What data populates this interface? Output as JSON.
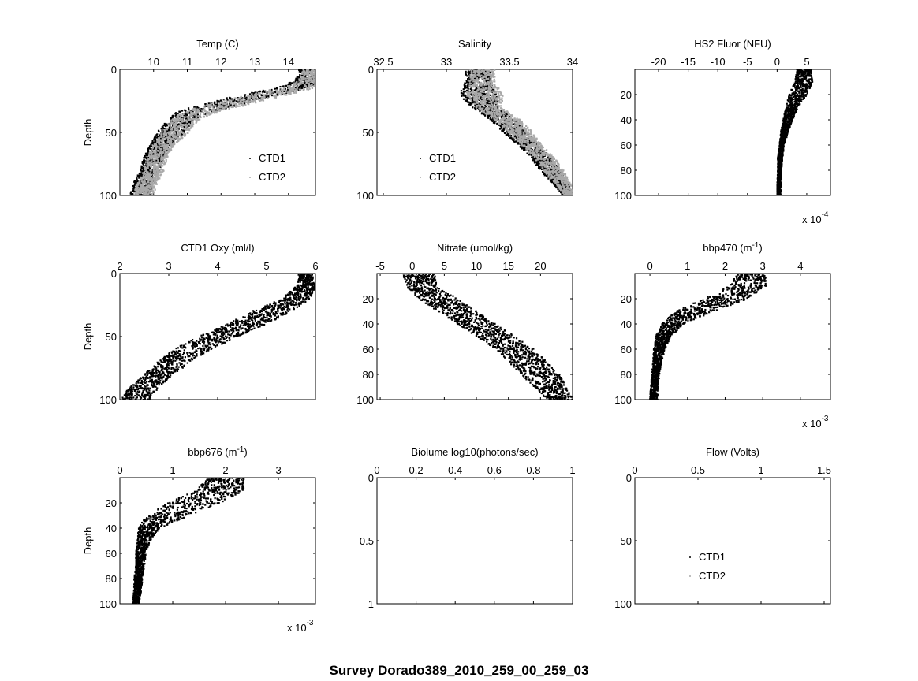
{
  "figure": {
    "suptitle": "Survey Dorado389_2010_259_00_259_03",
    "colors": {
      "ctd1": "#000000",
      "ctd2": "#a9a9a9",
      "axes": "#000000"
    }
  },
  "chart_data": [
    {
      "id": "temp",
      "type": "scatter",
      "title": "Temp (C)",
      "ylabel": "Depth",
      "xlim": [
        9.0,
        14.8
      ],
      "ylim": [
        0,
        100
      ],
      "xticks": [
        "10",
        "11",
        "12",
        "13",
        "14"
      ],
      "xtick_values": [
        10,
        11,
        12,
        13,
        14
      ],
      "yticks": [
        "0",
        "50",
        "100"
      ],
      "ytick_values": [
        0,
        50,
        100
      ],
      "legend": {
        "location": "lower-right",
        "entries": [
          "CTD1",
          "CTD2"
        ]
      },
      "series": [
        {
          "name": "CTD1",
          "color": "#000000",
          "depth": [
            0,
            5,
            10,
            15,
            20,
            25,
            30,
            35,
            40,
            50,
            60,
            70,
            80,
            90,
            100
          ],
          "center": [
            14.6,
            14.6,
            14.5,
            14.1,
            13.2,
            12.4,
            11.7,
            11.1,
            10.8,
            10.5,
            10.2,
            10.0,
            9.9,
            9.7,
            9.6
          ],
          "spread": [
            0.3,
            0.3,
            0.4,
            0.5,
            0.6,
            0.6,
            0.6,
            0.5,
            0.4,
            0.4,
            0.3,
            0.3,
            0.3,
            0.3,
            0.3
          ]
        },
        {
          "name": "CTD2",
          "color": "#a9a9a9",
          "depth": [
            0,
            5,
            10,
            15,
            20,
            25,
            30,
            35,
            40,
            50,
            60,
            70,
            80,
            90,
            100
          ],
          "center": [
            14.6,
            14.6,
            14.5,
            14.1,
            13.2,
            12.4,
            11.7,
            11.1,
            10.8,
            10.5,
            10.2,
            10.0,
            9.9,
            9.7,
            9.6
          ],
          "spread": [
            0.3,
            0.3,
            0.4,
            0.5,
            0.6,
            0.6,
            0.6,
            0.5,
            0.4,
            0.4,
            0.3,
            0.3,
            0.3,
            0.3,
            0.3
          ]
        }
      ]
    },
    {
      "id": "salinity",
      "type": "scatter",
      "title": "Salinity",
      "ylabel": "",
      "xlim": [
        32.45,
        34.0
      ],
      "ylim": [
        0,
        100
      ],
      "xticks": [
        "32.5",
        "33",
        "33.5",
        "34"
      ],
      "xtick_values": [
        32.5,
        33,
        33.5,
        34
      ],
      "yticks": [
        "0",
        "50",
        "100"
      ],
      "ytick_values": [
        0,
        50,
        100
      ],
      "legend": {
        "location": "lower-left",
        "entries": [
          "CTD1",
          "CTD2"
        ]
      },
      "series": [
        {
          "name": "CTD1",
          "color": "#000000",
          "depth": [
            0,
            10,
            20,
            30,
            40,
            50,
            60,
            70,
            80,
            90,
            100
          ],
          "center": [
            33.25,
            33.25,
            33.25,
            33.3,
            33.45,
            33.55,
            33.65,
            33.75,
            33.82,
            33.9,
            33.97
          ],
          "spread": [
            0.1,
            0.1,
            0.15,
            0.1,
            0.1,
            0.1,
            0.08,
            0.08,
            0.08,
            0.06,
            0.05
          ]
        },
        {
          "name": "CTD2",
          "color": "#a9a9a9",
          "depth": [
            0,
            10,
            20,
            30,
            40,
            50,
            60,
            70,
            80,
            90,
            100
          ],
          "center": [
            33.25,
            33.25,
            33.25,
            33.3,
            33.45,
            33.55,
            33.65,
            33.75,
            33.82,
            33.9,
            33.97
          ],
          "spread": [
            0.1,
            0.1,
            0.15,
            0.1,
            0.1,
            0.1,
            0.08,
            0.08,
            0.08,
            0.06,
            0.05
          ]
        }
      ]
    },
    {
      "id": "fluor",
      "type": "scatter",
      "title": "HS2 Fluor (NFU)",
      "ylabel": "",
      "xlim": [
        -24,
        9
      ],
      "ylim": [
        0,
        100
      ],
      "exponent": "x 10^-4",
      "xticks": [
        "-20",
        "-15",
        "-10",
        "-5",
        "0",
        "5"
      ],
      "xtick_values": [
        -20,
        -15,
        -10,
        -5,
        0,
        5
      ],
      "yticks": [
        "20",
        "40",
        "60",
        "80",
        "100"
      ],
      "ytick_values": [
        20,
        40,
        60,
        80,
        100
      ],
      "series": [
        {
          "name": "",
          "color": "#000000",
          "depth": [
            0,
            10,
            20,
            30,
            40,
            50,
            60,
            70,
            80,
            90,
            100
          ],
          "center": [
            4.5,
            4.5,
            3.5,
            2.5,
            1.8,
            1.2,
            0.8,
            0.5,
            0.4,
            0.3,
            0.3
          ],
          "spread": [
            1.2,
            1.5,
            1.5,
            1.0,
            0.8,
            0.6,
            0.4,
            0.4,
            0.3,
            0.3,
            0.3
          ]
        }
      ]
    },
    {
      "id": "oxy",
      "type": "scatter",
      "title": "CTD1 Oxy (ml/l)",
      "ylabel": "Depth",
      "xlim": [
        2,
        6
      ],
      "ylim": [
        0,
        100
      ],
      "xticks": [
        "2",
        "3",
        "4",
        "5",
        "6"
      ],
      "xtick_values": [
        2,
        3,
        4,
        5,
        6
      ],
      "yticks": [
        "0",
        "50",
        "100"
      ],
      "ytick_values": [
        0,
        50,
        100
      ],
      "series": [
        {
          "name": "",
          "color": "#000000",
          "depth": [
            0,
            5,
            10,
            20,
            30,
            40,
            50,
            60,
            70,
            80,
            90,
            100
          ],
          "center": [
            5.8,
            5.8,
            5.8,
            5.6,
            5.1,
            4.6,
            4.0,
            3.5,
            3.1,
            2.8,
            2.5,
            2.3
          ],
          "spread": [
            0.15,
            0.15,
            0.2,
            0.3,
            0.4,
            0.4,
            0.4,
            0.4,
            0.35,
            0.3,
            0.3,
            0.3
          ]
        }
      ]
    },
    {
      "id": "nitrate",
      "type": "scatter",
      "title": "Nitrate (umol/kg)",
      "ylabel": "",
      "xlim": [
        -5.5,
        25
      ],
      "ylim": [
        0,
        100
      ],
      "xticks": [
        "-5",
        "0",
        "5",
        "10",
        "15",
        "20"
      ],
      "xtick_values": [
        -5,
        0,
        5,
        10,
        15,
        20
      ],
      "yticks": [
        "20",
        "40",
        "60",
        "80",
        "100"
      ],
      "ytick_values": [
        20,
        40,
        60,
        80,
        100
      ],
      "series": [
        {
          "name": "",
          "color": "#000000",
          "depth": [
            0,
            10,
            20,
            30,
            40,
            50,
            60,
            70,
            80,
            90,
            100
          ],
          "center": [
            1,
            1.5,
            4,
            7,
            10,
            13,
            16,
            18,
            20,
            21.5,
            23
          ],
          "spread": [
            2.5,
            2.5,
            3,
            3,
            3,
            3,
            3,
            3,
            3,
            2.5,
            2
          ]
        }
      ]
    },
    {
      "id": "bbp470",
      "type": "scatter",
      "title": "bbp470 (m^-1)",
      "ylabel": "",
      "xlim": [
        -0.4,
        4.8
      ],
      "ylim": [
        0,
        100
      ],
      "exponent": "x 10^-3",
      "xticks": [
        "0",
        "1",
        "2",
        "3",
        "4"
      ],
      "xtick_values": [
        0,
        1,
        2,
        3,
        4
      ],
      "yticks": [
        "20",
        "40",
        "60",
        "80",
        "100"
      ],
      "ytick_values": [
        20,
        40,
        60,
        80,
        100
      ],
      "series": [
        {
          "name": "",
          "color": "#000000",
          "depth": [
            0,
            10,
            20,
            30,
            40,
            50,
            60,
            70,
            80,
            90,
            100
          ],
          "center": [
            2.7,
            2.6,
            2.0,
            1.2,
            0.6,
            0.35,
            0.25,
            0.2,
            0.15,
            0.12,
            0.1
          ],
          "spread": [
            0.4,
            0.5,
            0.6,
            0.5,
            0.3,
            0.2,
            0.15,
            0.12,
            0.1,
            0.1,
            0.1
          ]
        }
      ]
    },
    {
      "id": "bbp676",
      "type": "scatter",
      "title": "bbp676 (m^-1)",
      "ylabel": "Depth",
      "xlim": [
        0,
        3.7
      ],
      "ylim": [
        0,
        100
      ],
      "exponent": "x 10^-3",
      "xticks": [
        "0",
        "1",
        "2",
        "3"
      ],
      "xtick_values": [
        0,
        1,
        2,
        3
      ],
      "yticks": [
        "20",
        "40",
        "60",
        "80",
        "100"
      ],
      "ytick_values": [
        20,
        40,
        60,
        80,
        100
      ],
      "series": [
        {
          "name": "",
          "color": "#000000",
          "depth": [
            0,
            10,
            20,
            30,
            40,
            50,
            60,
            70,
            80,
            90,
            100
          ],
          "center": [
            2.0,
            1.9,
            1.4,
            0.9,
            0.55,
            0.45,
            0.4,
            0.38,
            0.35,
            0.33,
            0.3
          ],
          "spread": [
            0.35,
            0.45,
            0.5,
            0.4,
            0.2,
            0.12,
            0.1,
            0.08,
            0.08,
            0.07,
            0.06
          ]
        }
      ]
    },
    {
      "id": "biolume",
      "type": "scatter",
      "title": "Biolume log10(photons/sec)",
      "ylabel": "",
      "xlim": [
        0,
        1
      ],
      "ylim": [
        0,
        1
      ],
      "xticks": [
        "0",
        "0.2",
        "0.4",
        "0.6",
        "0.8",
        "1"
      ],
      "xtick_values": [
        0,
        0.2,
        0.4,
        0.6,
        0.8,
        1
      ],
      "yticks": [
        "0",
        "0.5",
        "1"
      ],
      "ytick_values": [
        0,
        0.5,
        1
      ],
      "series": []
    },
    {
      "id": "flow",
      "type": "scatter",
      "title": "Flow (Volts)",
      "ylabel": "",
      "xlim": [
        0,
        1.55
      ],
      "ylim": [
        0,
        100
      ],
      "xticks": [
        "0",
        "0.5",
        "1",
        "1.5"
      ],
      "xtick_values": [
        0,
        0.5,
        1,
        1.5
      ],
      "yticks": [
        "0",
        "50",
        "100"
      ],
      "ytick_values": [
        0,
        50,
        100
      ],
      "legend": {
        "location": "lower-center",
        "entries": [
          "CTD1",
          "CTD2"
        ]
      },
      "series": []
    }
  ]
}
